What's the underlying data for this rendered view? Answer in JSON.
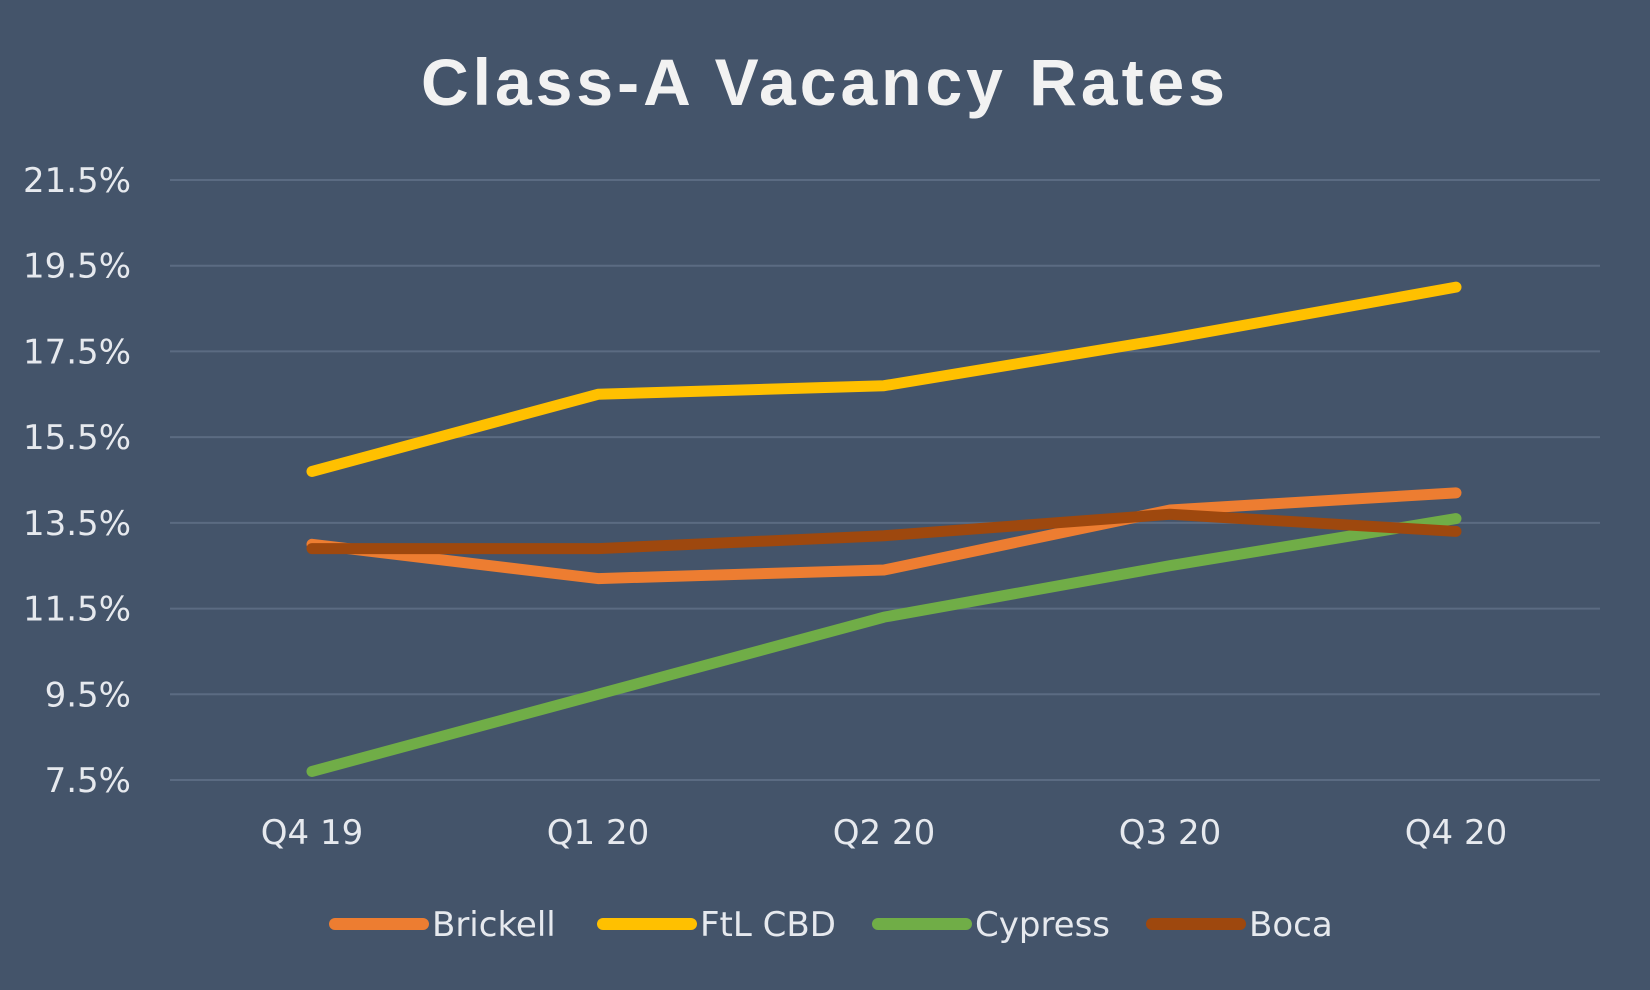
{
  "chart_data": {
    "type": "line",
    "title": "Class-A Vacancy Rates",
    "xlabel": "",
    "ylabel": "",
    "categories": [
      "Q4 19",
      "Q1 20",
      "Q2 20",
      "Q3 20",
      "Q4 20"
    ],
    "y_ticks": [
      "7.5%",
      "9.5%",
      "11.5%",
      "13.5%",
      "15.5%",
      "17.5%",
      "19.5%",
      "21.5%"
    ],
    "ylim": [
      7.5,
      21.5
    ],
    "grid": true,
    "legend_position": "bottom",
    "background": "#44546a",
    "series": [
      {
        "name": "Brickell",
        "color": "#ed7d31",
        "values": [
          13.0,
          12.2,
          12.4,
          13.8,
          14.2
        ]
      },
      {
        "name": "FtL CBD",
        "color": "#ffc000",
        "values": [
          14.7,
          16.5,
          16.7,
          17.8,
          19.0
        ]
      },
      {
        "name": "Cypress",
        "color": "#70ad47",
        "values": [
          7.7,
          9.5,
          11.3,
          12.5,
          13.6
        ]
      },
      {
        "name": "Boca",
        "color": "#9e480e",
        "values": [
          12.9,
          12.9,
          13.2,
          13.7,
          13.3
        ]
      }
    ]
  }
}
